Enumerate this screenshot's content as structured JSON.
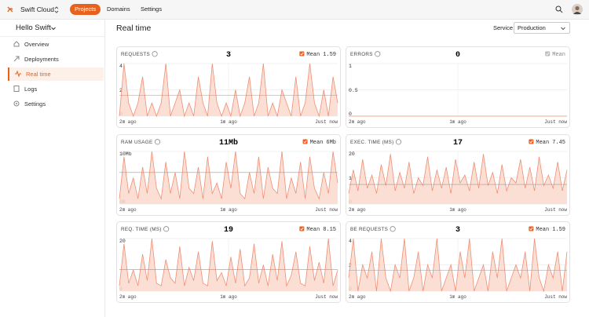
{
  "nav": {
    "brand": "Swift Cloud",
    "tabs": [
      "Projects",
      "Domains",
      "Settings"
    ]
  },
  "sidebar": {
    "project": "Hello Swift",
    "items": [
      "Overview",
      "Deployments",
      "Real time",
      "Logs",
      "Settings"
    ]
  },
  "header": {
    "title": "Real time",
    "service_label": "Service",
    "service": "Production"
  },
  "chart_data": [
    {
      "type": "area",
      "title": "REQUESTS",
      "current": 3,
      "mean_label": "Mean",
      "mean": 1.59,
      "mean_shown": true,
      "color": "#ef8f74",
      "ylim": [
        0,
        4
      ],
      "yticks": [
        0,
        2,
        4
      ],
      "xlabels": [
        "2m ago",
        "1m ago",
        "Just now"
      ],
      "values": [
        0,
        4,
        1,
        0,
        1,
        3,
        0,
        1,
        0,
        1,
        4,
        0,
        1,
        2,
        0,
        1,
        0,
        3,
        1,
        0,
        4,
        1,
        0,
        1,
        0,
        2,
        0,
        1,
        3,
        0,
        1,
        4,
        0,
        1,
        0,
        2,
        1,
        0,
        3,
        0,
        1,
        4,
        1,
        0,
        2,
        0,
        3,
        1
      ]
    },
    {
      "type": "area",
      "title": "ERRORS",
      "current": 0,
      "mean_label": "Mean",
      "mean_shown": false,
      "color": "#ef8f74",
      "ylim": [
        0,
        1
      ],
      "yticks": [
        0,
        0.5,
        1
      ],
      "xlabels": [
        "2m ago",
        "1m ago",
        "Just now"
      ],
      "values": [
        0,
        0,
        0,
        0,
        0,
        0,
        0,
        0,
        0,
        0,
        0,
        0,
        0,
        0,
        0,
        0,
        0,
        0,
        0,
        0,
        0,
        0,
        0,
        0,
        0,
        0,
        0,
        0,
        0,
        0,
        0,
        0,
        0,
        0,
        0,
        0,
        0,
        0,
        0,
        0,
        0,
        0,
        0,
        0,
        0,
        0,
        0,
        0
      ]
    },
    {
      "type": "area",
      "title": "RAM USAGE",
      "current": 11,
      "current_label": "11Mb",
      "mean_label": "Mean",
      "mean": 6,
      "mean_value_label": "6Mb",
      "mean_shown": true,
      "color": "#ef8f74",
      "ylim": [
        0,
        10
      ],
      "yticks": [
        {
          "value": 0,
          "label": "0B"
        },
        {
          "value": 10,
          "label": "10Mb"
        }
      ],
      "xlabels": [
        "2m ago",
        "1m ago",
        "Just now"
      ],
      "values": [
        1,
        9,
        2,
        5,
        1,
        7,
        2,
        10,
        3,
        1,
        8,
        2,
        6,
        1,
        10,
        3,
        2,
        7,
        1,
        9,
        2,
        4,
        1,
        8,
        3,
        10,
        2,
        1,
        6,
        2,
        9,
        1,
        7,
        3,
        2,
        10,
        1,
        5,
        2,
        8,
        1,
        9,
        3,
        1,
        6,
        2,
        10,
        4
      ]
    },
    {
      "type": "area",
      "title": "EXEC. TIME (MS)",
      "current": 17,
      "mean_label": "Mean",
      "mean": 7.45,
      "mean_shown": true,
      "color": "#ef8f74",
      "ylim": [
        0,
        20
      ],
      "yticks": [
        0,
        10,
        20
      ],
      "xlabels": [
        "2m ago",
        "1m ago",
        "Just now"
      ],
      "values": [
        4,
        13,
        5,
        17,
        6,
        11,
        4,
        15,
        7,
        19,
        5,
        12,
        6,
        16,
        4,
        10,
        7,
        18,
        5,
        13,
        6,
        14,
        4,
        17,
        8,
        11,
        5,
        16,
        6,
        19,
        7,
        12,
        4,
        15,
        5,
        10,
        8,
        17,
        6,
        14,
        5,
        18,
        7,
        11,
        6,
        16,
        5,
        13
      ]
    },
    {
      "type": "area",
      "title": "REQ. TIME (MS)",
      "current": 19,
      "mean_label": "Mean",
      "mean": 8.15,
      "mean_shown": true,
      "color": "#ef8f74",
      "ylim": [
        0,
        20
      ],
      "yticks": [
        0,
        20
      ],
      "xlabels": [
        "2m ago",
        "1m ago",
        "Just now"
      ],
      "values": [
        2,
        18,
        3,
        8,
        2,
        14,
        4,
        20,
        3,
        2,
        12,
        5,
        3,
        17,
        2,
        9,
        4,
        15,
        3,
        2,
        19,
        4,
        7,
        2,
        13,
        3,
        16,
        2,
        5,
        18,
        3,
        10,
        2,
        14,
        4,
        19,
        2,
        6,
        15,
        3,
        2,
        17,
        4,
        11,
        3,
        20,
        2,
        8
      ]
    },
    {
      "type": "area",
      "title": "BE REQUESTS",
      "current": 3,
      "mean_label": "Mean",
      "mean": 1.59,
      "mean_shown": true,
      "color": "#ef8f74",
      "ylim": [
        0,
        4
      ],
      "yticks": [
        0,
        2,
        4
      ],
      "xlabels": [
        "2m ago",
        "1m ago",
        "Just now"
      ],
      "values": [
        1,
        4,
        0,
        2,
        1,
        3,
        0,
        4,
        1,
        0,
        2,
        1,
        4,
        0,
        1,
        3,
        0,
        2,
        1,
        4,
        0,
        1,
        2,
        0,
        3,
        1,
        4,
        0,
        1,
        2,
        0,
        3,
        1,
        4,
        0,
        1,
        2,
        1,
        3,
        0,
        4,
        1,
        0,
        2,
        1,
        3,
        0,
        3
      ]
    }
  ]
}
